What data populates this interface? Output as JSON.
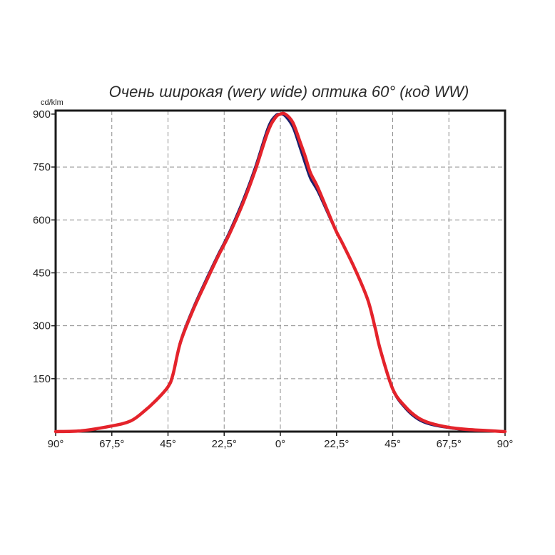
{
  "chart_data": {
    "type": "line",
    "title": "Очень широкая (wery wide) оптика 60° (код WW)",
    "ylabel": "cd/klm",
    "xlabel": "",
    "xlim": [
      -90,
      90
    ],
    "ylim": [
      0,
      910
    ],
    "grid": true,
    "x_ticks": [
      -90,
      -67.5,
      -45,
      -22.5,
      0,
      22.5,
      45,
      67.5,
      90
    ],
    "x_tick_labels": [
      "90°",
      "67,5°",
      "45°",
      "22,5°",
      "0°",
      "22,5°",
      "45°",
      "67,5°",
      "90°"
    ],
    "y_ticks": [
      150,
      300,
      450,
      600,
      750,
      900
    ],
    "y_tick_labels": [
      "150",
      "300",
      "450",
      "600",
      "750",
      "900"
    ],
    "series": [
      {
        "color": "#1c1f6b",
        "x": [
          -90,
          -80,
          -67.5,
          -60,
          -55,
          -50,
          -45,
          -43,
          -40,
          -35,
          -30,
          -25,
          -22.5,
          -20,
          -15,
          -10,
          -5,
          -2,
          0,
          2,
          5,
          8,
          10,
          12,
          15,
          20,
          22.5,
          25,
          30,
          35,
          38,
          40,
          45,
          50,
          55,
          60,
          67.5,
          75,
          90
        ],
        "y": [
          0,
          2,
          16,
          30,
          55,
          88,
          128,
          165,
          258,
          350,
          428,
          502,
          536,
          573,
          656,
          752,
          862,
          896,
          900,
          893,
          862,
          800,
          757,
          717,
          680,
          602,
          565,
          530,
          457,
          372,
          291,
          230,
          118,
          66,
          35,
          20,
          10,
          4,
          0
        ]
      },
      {
        "color": "#e4232b",
        "x": [
          -90,
          -80,
          -67.5,
          -60,
          -55,
          -50,
          -45,
          -43,
          -40,
          -35,
          -30,
          -25,
          -22.5,
          -20,
          -15,
          -10,
          -5,
          -2,
          0,
          2,
          5,
          8,
          10,
          12,
          15,
          20,
          22.5,
          25,
          30,
          35,
          38,
          40,
          45,
          50,
          55,
          60,
          67.5,
          75,
          90
        ],
        "y": [
          0,
          2,
          16,
          30,
          55,
          87,
          127,
          162,
          253,
          344,
          421,
          496,
          530,
          566,
          647,
          742,
          850,
          890,
          900,
          900,
          876,
          819,
          779,
          734,
          692,
          607,
          566,
          532,
          459,
          374,
          293,
          233,
          121,
          71,
          40,
          24,
          12,
          6,
          0
        ]
      }
    ]
  }
}
